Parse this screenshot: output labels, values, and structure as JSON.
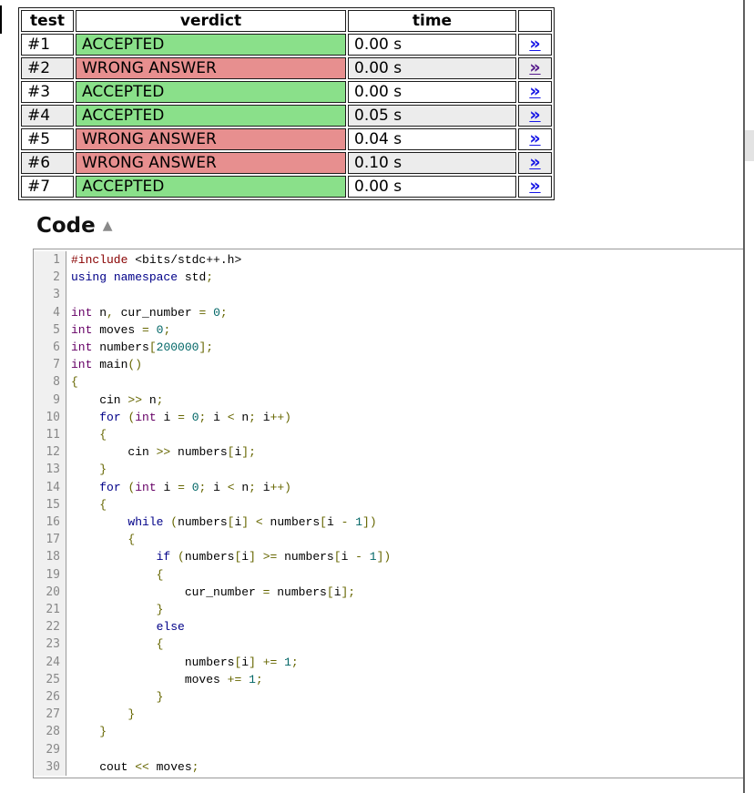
{
  "results_table": {
    "headers": [
      {
        "label": "test"
      },
      {
        "label": "verdict"
      },
      {
        "label": "time"
      },
      {
        "label": ""
      }
    ],
    "rows": [
      {
        "test": "#1",
        "verdict": "ACCEPTED",
        "status": "accepted",
        "time": "0.00 s",
        "link_icon": "»",
        "link_visited": false
      },
      {
        "test": "#2",
        "verdict": "WRONG ANSWER",
        "status": "wrong-answer",
        "time": "0.00 s",
        "link_icon": "»",
        "link_visited": true
      },
      {
        "test": "#3",
        "verdict": "ACCEPTED",
        "status": "accepted",
        "time": "0.00 s",
        "link_icon": "»",
        "link_visited": false
      },
      {
        "test": "#4",
        "verdict": "ACCEPTED",
        "status": "accepted",
        "time": "0.05 s",
        "link_icon": "»",
        "link_visited": false
      },
      {
        "test": "#5",
        "verdict": "WRONG ANSWER",
        "status": "wrong-answer",
        "time": "0.04 s",
        "link_icon": "»",
        "link_visited": false
      },
      {
        "test": "#6",
        "verdict": "WRONG ANSWER",
        "status": "wrong-answer",
        "time": "0.10 s",
        "link_icon": "»",
        "link_visited": false
      },
      {
        "test": "#7",
        "verdict": "ACCEPTED",
        "status": "accepted",
        "time": "0.00 s",
        "link_icon": "»",
        "link_visited": false
      }
    ]
  },
  "code_section": {
    "title": "Code",
    "collapse_icon": "▲",
    "lines": [
      [
        [
          "com",
          "#include"
        ],
        [
          "pln",
          " <bits/stdc++.h>"
        ]
      ],
      [
        [
          "kwd",
          "using"
        ],
        [
          "pln",
          " "
        ],
        [
          "kwd",
          "namespace"
        ],
        [
          "pln",
          " std"
        ],
        [
          "pun",
          ";"
        ]
      ],
      [],
      [
        [
          "typ",
          "int"
        ],
        [
          "pln",
          " n"
        ],
        [
          "pun",
          ","
        ],
        [
          "pln",
          " cur_number "
        ],
        [
          "pun",
          "="
        ],
        [
          "pln",
          " "
        ],
        [
          "lit",
          "0"
        ],
        [
          "pun",
          ";"
        ]
      ],
      [
        [
          "typ",
          "int"
        ],
        [
          "pln",
          " moves "
        ],
        [
          "pun",
          "="
        ],
        [
          "pln",
          " "
        ],
        [
          "lit",
          "0"
        ],
        [
          "pun",
          ";"
        ]
      ],
      [
        [
          "typ",
          "int"
        ],
        [
          "pln",
          " numbers"
        ],
        [
          "pun",
          "["
        ],
        [
          "lit",
          "200000"
        ],
        [
          "pun",
          "];"
        ]
      ],
      [
        [
          "typ",
          "int"
        ],
        [
          "pln",
          " main"
        ],
        [
          "pun",
          "()"
        ]
      ],
      [
        [
          "pun",
          "{"
        ]
      ],
      [
        [
          "pln",
          "    cin "
        ],
        [
          "pun",
          "&gt;&gt;"
        ],
        [
          "pln",
          " n"
        ],
        [
          "pun",
          ";"
        ]
      ],
      [
        [
          "pln",
          "    "
        ],
        [
          "kwd",
          "for"
        ],
        [
          "pln",
          " "
        ],
        [
          "pun",
          "("
        ],
        [
          "typ",
          "int"
        ],
        [
          "pln",
          " i "
        ],
        [
          "pun",
          "="
        ],
        [
          "pln",
          " "
        ],
        [
          "lit",
          "0"
        ],
        [
          "pun",
          ";"
        ],
        [
          "pln",
          " i "
        ],
        [
          "pun",
          "<"
        ],
        [
          "pln",
          " n"
        ],
        [
          "pun",
          ";"
        ],
        [
          "pln",
          " i"
        ],
        [
          "pun",
          "++)"
        ]
      ],
      [
        [
          "pln",
          "    "
        ],
        [
          "pun",
          "{"
        ]
      ],
      [
        [
          "pln",
          "        cin "
        ],
        [
          "pun",
          ">>"
        ],
        [
          "pln",
          " numbers"
        ],
        [
          "pun",
          "["
        ],
        [
          "pln",
          "i"
        ],
        [
          "pun",
          "];"
        ]
      ],
      [
        [
          "pln",
          "    "
        ],
        [
          "pun",
          "}"
        ]
      ],
      [
        [
          "pln",
          "    "
        ],
        [
          "kwd",
          "for"
        ],
        [
          "pln",
          " "
        ],
        [
          "pun",
          "("
        ],
        [
          "typ",
          "int"
        ],
        [
          "pln",
          " i "
        ],
        [
          "pun",
          "="
        ],
        [
          "pln",
          " "
        ],
        [
          "lit",
          "0"
        ],
        [
          "pun",
          ";"
        ],
        [
          "pln",
          " i "
        ],
        [
          "pun",
          "<"
        ],
        [
          "pln",
          " n"
        ],
        [
          "pun",
          ";"
        ],
        [
          "pln",
          " i"
        ],
        [
          "pun",
          "++)"
        ]
      ],
      [
        [
          "pln",
          "    "
        ],
        [
          "pun",
          "{"
        ]
      ],
      [
        [
          "pln",
          "        "
        ],
        [
          "kwd",
          "while"
        ],
        [
          "pln",
          " "
        ],
        [
          "pun",
          "("
        ],
        [
          "pln",
          "numbers"
        ],
        [
          "pun",
          "["
        ],
        [
          "pln",
          "i"
        ],
        [
          "pun",
          "]"
        ],
        [
          "pln",
          " "
        ],
        [
          "pun",
          "<"
        ],
        [
          "pln",
          " numbers"
        ],
        [
          "pun",
          "["
        ],
        [
          "pln",
          "i "
        ],
        [
          "pun",
          "-"
        ],
        [
          "pln",
          " "
        ],
        [
          "lit",
          "1"
        ],
        [
          "pun",
          "])"
        ]
      ],
      [
        [
          "pln",
          "        "
        ],
        [
          "pun",
          "{"
        ]
      ],
      [
        [
          "pln",
          "            "
        ],
        [
          "kwd",
          "if"
        ],
        [
          "pln",
          " "
        ],
        [
          "pun",
          "("
        ],
        [
          "pln",
          "numbers"
        ],
        [
          "pun",
          "["
        ],
        [
          "pln",
          "i"
        ],
        [
          "pun",
          "]"
        ],
        [
          "pln",
          " "
        ],
        [
          "pun",
          ">="
        ],
        [
          "pln",
          " numbers"
        ],
        [
          "pun",
          "["
        ],
        [
          "pln",
          "i "
        ],
        [
          "pun",
          "-"
        ],
        [
          "pln",
          " "
        ],
        [
          "lit",
          "1"
        ],
        [
          "pun",
          "])"
        ]
      ],
      [
        [
          "pln",
          "            "
        ],
        [
          "pun",
          "{"
        ]
      ],
      [
        [
          "pln",
          "                cur_number "
        ],
        [
          "pun",
          "="
        ],
        [
          "pln",
          " numbers"
        ],
        [
          "pun",
          "["
        ],
        [
          "pln",
          "i"
        ],
        [
          "pun",
          "];"
        ]
      ],
      [
        [
          "pln",
          "            "
        ],
        [
          "pun",
          "}"
        ]
      ],
      [
        [
          "pln",
          "            "
        ],
        [
          "kwd",
          "else"
        ]
      ],
      [
        [
          "pln",
          "            "
        ],
        [
          "pun",
          "{"
        ]
      ],
      [
        [
          "pln",
          "                numbers"
        ],
        [
          "pun",
          "["
        ],
        [
          "pln",
          "i"
        ],
        [
          "pun",
          "]"
        ],
        [
          "pln",
          " "
        ],
        [
          "pun",
          "+="
        ],
        [
          "pln",
          " "
        ],
        [
          "lit",
          "1"
        ],
        [
          "pun",
          ";"
        ]
      ],
      [
        [
          "pln",
          "                moves "
        ],
        [
          "pun",
          "+="
        ],
        [
          "pln",
          " "
        ],
        [
          "lit",
          "1"
        ],
        [
          "pun",
          ";"
        ]
      ],
      [
        [
          "pln",
          "            "
        ],
        [
          "pun",
          "}"
        ]
      ],
      [
        [
          "pln",
          "        "
        ],
        [
          "pun",
          "}"
        ]
      ],
      [
        [
          "pln",
          "    "
        ],
        [
          "pun",
          "}"
        ]
      ],
      [],
      [
        [
          "pln",
          "    cout "
        ],
        [
          "pun",
          "<<"
        ],
        [
          "pln",
          " moves"
        ],
        [
          "pun",
          ";"
        ]
      ]
    ]
  },
  "colors": {
    "verdict_accepted_bg": "#8ae08a",
    "verdict_wrong_bg": "#e78f8f",
    "row_alt_bg": "#ececec",
    "link_blue": "#1515e6",
    "link_visited": "#551a8b",
    "line_number": "#888888",
    "gutter_bg": "#f0f0f0",
    "syntax": {
      "preprocessor": "#880000",
      "keyword": "#000088",
      "type": "#660066",
      "literal": "#006666",
      "punctuation": "#666600",
      "plain": "#000000"
    }
  },
  "scrollbar": {
    "thumb": "vertical-scrollbar-thumb"
  }
}
